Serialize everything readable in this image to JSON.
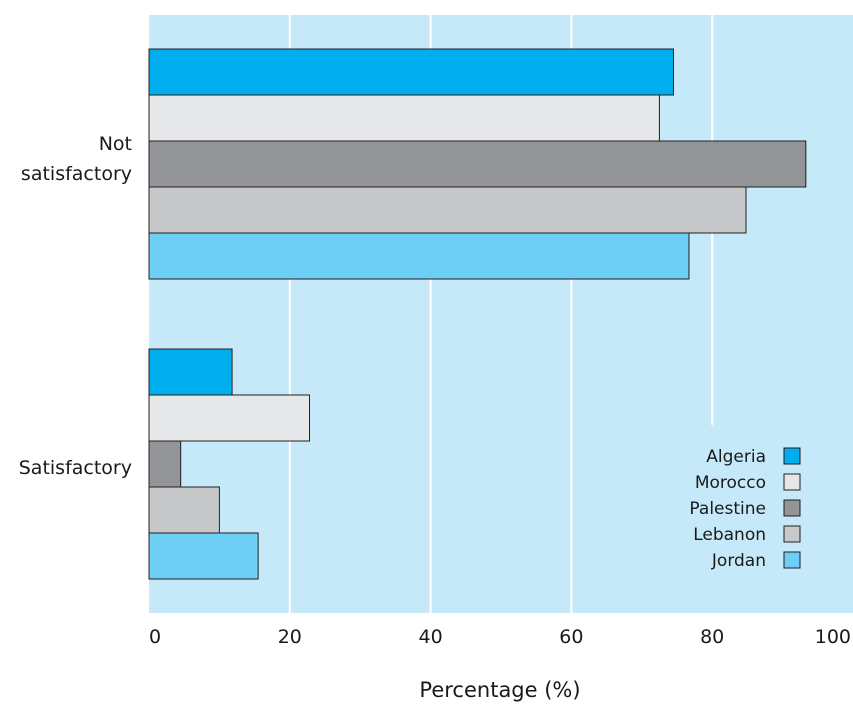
{
  "chart_data": {
    "type": "bar",
    "orientation": "horizontal",
    "categories": [
      "Not satisfactory",
      "Satisfactory"
    ],
    "category_label_lines": [
      [
        "Not",
        "satisfactory"
      ],
      [
        "Satisfactory"
      ]
    ],
    "series": [
      {
        "name": "Algeria",
        "values": [
          74.5,
          11.8
        ]
      },
      {
        "name": "Morocco",
        "values": [
          72.5,
          22.8
        ]
      },
      {
        "name": "Palestine",
        "values": [
          93.3,
          4.5
        ]
      },
      {
        "name": "Lebanon",
        "values": [
          84.8,
          10
        ]
      },
      {
        "name": "Jordan",
        "values": [
          76.7,
          15.5
        ]
      }
    ],
    "colors": [
      "#00aeef",
      "#e6e7e8",
      "#929497",
      "#c7c8ca",
      "#6dcff6"
    ],
    "plot_background": "#c6e9f9",
    "gridline_color": "#ffffff",
    "xlabel": "Percentage (%)",
    "ylabel": "",
    "xlim": [
      0,
      100
    ],
    "xticks": [
      0,
      20,
      40,
      60,
      80,
      100
    ],
    "grid": true,
    "legend_position": "bottom-right"
  }
}
